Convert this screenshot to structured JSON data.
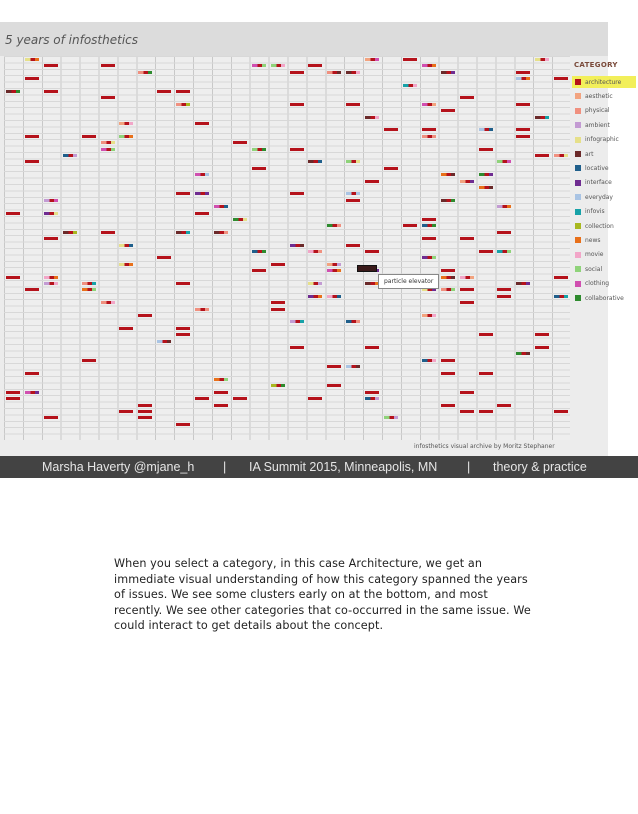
{
  "slide": {
    "viz_title": "5 years of infosthetics",
    "credit": "infosthetics visual archive by Moritz Stephaner",
    "tooltip": "particle elevator",
    "category_heading": "CATEGORY",
    "categories": [
      {
        "label": "architecture",
        "color": "#b5121b",
        "selected": true
      },
      {
        "label": "aesthetic",
        "color": "#f2a37f"
      },
      {
        "label": "physical",
        "color": "#f0907f"
      },
      {
        "label": "ambient",
        "color": "#c39bd3"
      },
      {
        "label": "infographic",
        "color": "#e6e08a"
      },
      {
        "label": "art",
        "color": "#6b2a2a"
      },
      {
        "label": "locative",
        "color": "#1f5f8b"
      },
      {
        "label": "interface",
        "color": "#6f2c91"
      },
      {
        "label": "everyday",
        "color": "#a9c4e4"
      },
      {
        "label": "infovis",
        "color": "#17a2a8"
      },
      {
        "label": "collection",
        "color": "#a8b820"
      },
      {
        "label": "news",
        "color": "#e8701a"
      },
      {
        "label": "movie",
        "color": "#f2a6c8"
      },
      {
        "label": "social",
        "color": "#8fd37a"
      },
      {
        "label": "clothing",
        "color": "#d04fb0"
      },
      {
        "label": "collaborative",
        "color": "#2e8b2e"
      }
    ],
    "footer": {
      "author": "Marsha Haverty  @mjane_h",
      "sep1": "|",
      "event": "IA Summit 2015, Minneapolis, MN",
      "sep2": "|",
      "theme": "theory & practice"
    }
  },
  "notes": {
    "text": "When you select a category, in this case Architecture, we get an immediate visual understanding of how this category spanned the years of issues. We see some clusters early on at the bottom, and most recently. We see other categories that co-occurred in the same issue. We could interact to get details about the concept."
  }
}
